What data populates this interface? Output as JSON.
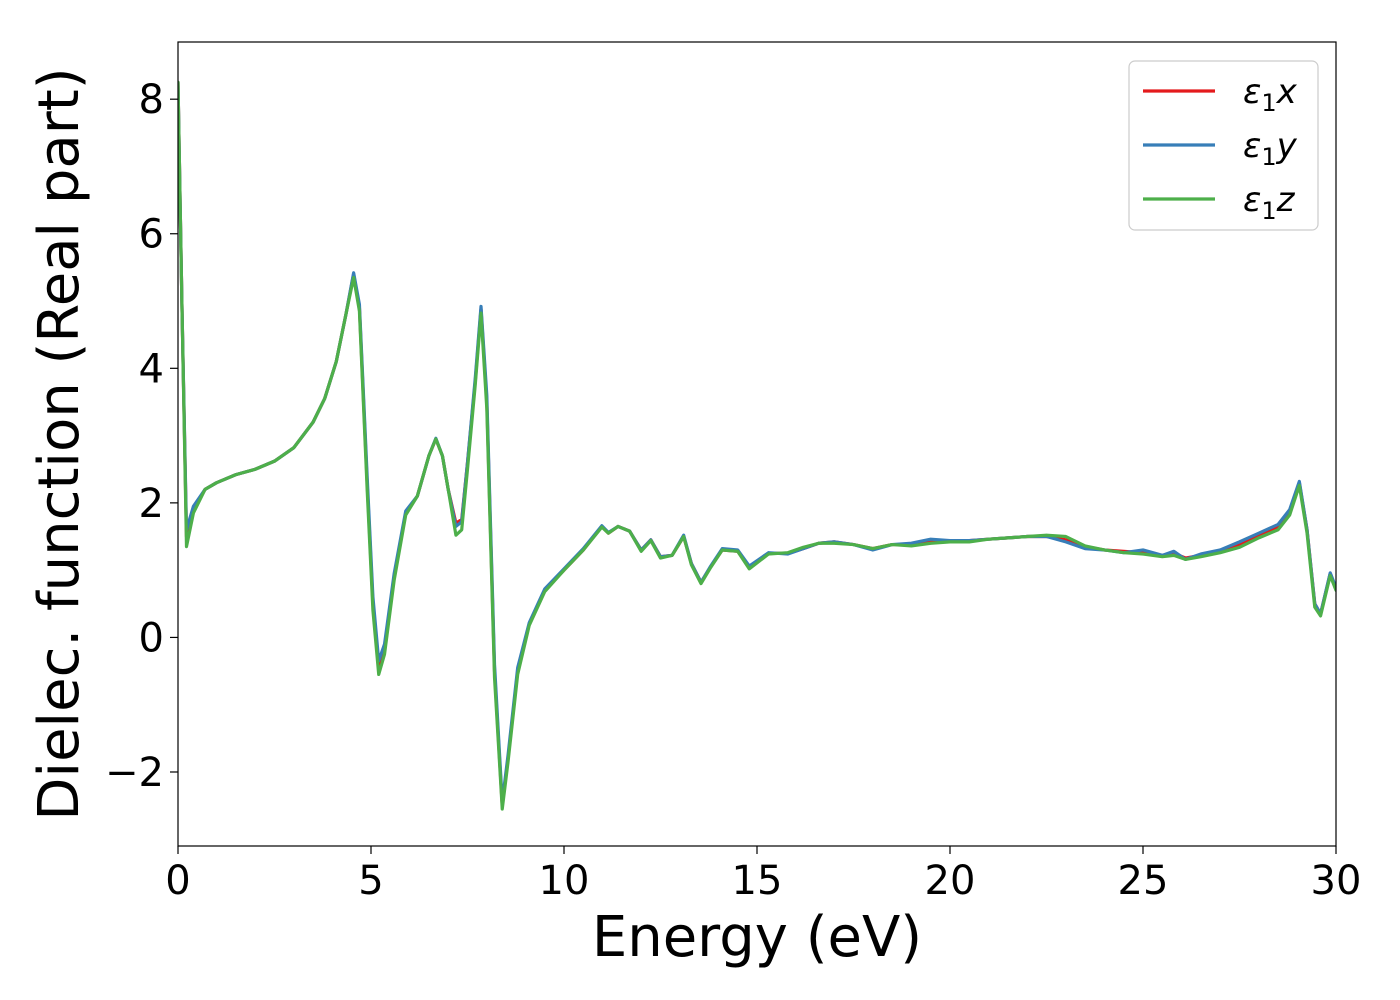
{
  "chart_data": {
    "type": "line",
    "title": "",
    "xlabel": "Energy (eV)",
    "ylabel": "Dielec. function (Real part)",
    "xlim": [
      0,
      30
    ],
    "ylim": [
      -3.1,
      8.85
    ],
    "xticks": [
      0,
      5,
      10,
      15,
      20,
      25,
      30
    ],
    "yticks": [
      -2,
      0,
      2,
      4,
      6,
      8
    ],
    "ytick_labels": [
      "−2",
      "0",
      "2",
      "4",
      "6",
      "8"
    ],
    "grid": false,
    "legend_position": "top-right",
    "series": [
      {
        "name": "ε1x",
        "symbol": "ε",
        "sub": "1",
        "axis": "x",
        "color": "#e41a1c",
        "points": [
          [
            0,
            8.25
          ],
          [
            0.1,
            5.0
          ],
          [
            0.22,
            1.5
          ],
          [
            0.4,
            1.9
          ],
          [
            0.7,
            2.2
          ],
          [
            1,
            2.3
          ],
          [
            1.5,
            2.42
          ],
          [
            2,
            2.5
          ],
          [
            2.5,
            2.62
          ],
          [
            3,
            2.82
          ],
          [
            3.5,
            3.2
          ],
          [
            3.8,
            3.55
          ],
          [
            4.1,
            4.1
          ],
          [
            4.35,
            4.8
          ],
          [
            4.55,
            5.4
          ],
          [
            4.7,
            4.9
          ],
          [
            4.9,
            2.3
          ],
          [
            5.05,
            0.5
          ],
          [
            5.2,
            -0.45
          ],
          [
            5.35,
            -0.2
          ],
          [
            5.6,
            0.9
          ],
          [
            5.9,
            1.85
          ],
          [
            6.2,
            2.1
          ],
          [
            6.5,
            2.7
          ],
          [
            6.68,
            2.95
          ],
          [
            6.85,
            2.7
          ],
          [
            7.0,
            2.2
          ],
          [
            7.2,
            1.7
          ],
          [
            7.35,
            1.75
          ],
          [
            7.5,
            2.6
          ],
          [
            7.7,
            3.8
          ],
          [
            7.85,
            4.88
          ],
          [
            8.0,
            3.5
          ],
          [
            8.2,
            -0.5
          ],
          [
            8.4,
            -2.5
          ],
          [
            8.55,
            -1.8
          ],
          [
            8.8,
            -0.5
          ],
          [
            9.1,
            0.2
          ],
          [
            9.5,
            0.7
          ],
          [
            10,
            1.0
          ],
          [
            10.5,
            1.3
          ],
          [
            10.98,
            1.65
          ],
          [
            11.15,
            1.55
          ],
          [
            11.4,
            1.65
          ],
          [
            11.7,
            1.58
          ],
          [
            12.0,
            1.3
          ],
          [
            12.25,
            1.45
          ],
          [
            12.5,
            1.2
          ],
          [
            12.8,
            1.22
          ],
          [
            13.1,
            1.5
          ],
          [
            13.3,
            1.1
          ],
          [
            13.55,
            0.82
          ],
          [
            13.8,
            1.05
          ],
          [
            14.1,
            1.3
          ],
          [
            14.5,
            1.28
          ],
          [
            14.8,
            1.05
          ],
          [
            15.3,
            1.25
          ],
          [
            15.8,
            1.25
          ],
          [
            16.2,
            1.32
          ],
          [
            16.6,
            1.4
          ],
          [
            17.0,
            1.42
          ],
          [
            17.5,
            1.38
          ],
          [
            18.0,
            1.32
          ],
          [
            18.5,
            1.38
          ],
          [
            19.0,
            1.38
          ],
          [
            19.5,
            1.42
          ],
          [
            20,
            1.42
          ],
          [
            20.5,
            1.44
          ],
          [
            21,
            1.46
          ],
          [
            21.5,
            1.48
          ],
          [
            22,
            1.5
          ],
          [
            22.5,
            1.5
          ],
          [
            23,
            1.45
          ],
          [
            23.5,
            1.35
          ],
          [
            24,
            1.3
          ],
          [
            24.5,
            1.28
          ],
          [
            25,
            1.26
          ],
          [
            25.5,
            1.22
          ],
          [
            25.8,
            1.25
          ],
          [
            26.1,
            1.18
          ],
          [
            26.5,
            1.22
          ],
          [
            27,
            1.28
          ],
          [
            27.5,
            1.38
          ],
          [
            28,
            1.52
          ],
          [
            28.5,
            1.65
          ],
          [
            28.8,
            1.85
          ],
          [
            29.05,
            2.3
          ],
          [
            29.25,
            1.6
          ],
          [
            29.45,
            0.5
          ],
          [
            29.6,
            0.35
          ],
          [
            29.85,
            0.95
          ],
          [
            30,
            0.72
          ]
        ]
      },
      {
        "name": "ε1y",
        "symbol": "ε",
        "sub": "1",
        "axis": "y",
        "color": "#377eb8",
        "points": [
          [
            0,
            8.25
          ],
          [
            0.1,
            5.0
          ],
          [
            0.22,
            1.6
          ],
          [
            0.4,
            1.95
          ],
          [
            0.7,
            2.2
          ],
          [
            1,
            2.3
          ],
          [
            1.5,
            2.42
          ],
          [
            2,
            2.5
          ],
          [
            2.5,
            2.62
          ],
          [
            3,
            2.82
          ],
          [
            3.5,
            3.2
          ],
          [
            3.8,
            3.55
          ],
          [
            4.1,
            4.1
          ],
          [
            4.35,
            4.8
          ],
          [
            4.55,
            5.42
          ],
          [
            4.7,
            4.95
          ],
          [
            4.9,
            2.4
          ],
          [
            5.05,
            0.6
          ],
          [
            5.2,
            -0.35
          ],
          [
            5.35,
            -0.1
          ],
          [
            5.6,
            0.95
          ],
          [
            5.9,
            1.88
          ],
          [
            6.2,
            2.1
          ],
          [
            6.5,
            2.7
          ],
          [
            6.68,
            2.96
          ],
          [
            6.85,
            2.7
          ],
          [
            7.0,
            2.2
          ],
          [
            7.2,
            1.65
          ],
          [
            7.35,
            1.72
          ],
          [
            7.5,
            2.6
          ],
          [
            7.7,
            3.85
          ],
          [
            7.85,
            4.92
          ],
          [
            8.0,
            3.6
          ],
          [
            8.2,
            -0.4
          ],
          [
            8.4,
            -2.45
          ],
          [
            8.55,
            -1.75
          ],
          [
            8.8,
            -0.45
          ],
          [
            9.1,
            0.22
          ],
          [
            9.5,
            0.72
          ],
          [
            10,
            1.02
          ],
          [
            10.5,
            1.32
          ],
          [
            10.98,
            1.66
          ],
          [
            11.15,
            1.56
          ],
          [
            11.4,
            1.65
          ],
          [
            11.7,
            1.58
          ],
          [
            12.0,
            1.3
          ],
          [
            12.25,
            1.45
          ],
          [
            12.5,
            1.2
          ],
          [
            12.8,
            1.22
          ],
          [
            13.1,
            1.52
          ],
          [
            13.3,
            1.1
          ],
          [
            13.55,
            0.82
          ],
          [
            13.8,
            1.06
          ],
          [
            14.1,
            1.32
          ],
          [
            14.5,
            1.3
          ],
          [
            14.8,
            1.06
          ],
          [
            15.3,
            1.26
          ],
          [
            15.8,
            1.24
          ],
          [
            16.2,
            1.32
          ],
          [
            16.6,
            1.4
          ],
          [
            17.0,
            1.42
          ],
          [
            17.5,
            1.38
          ],
          [
            18.0,
            1.3
          ],
          [
            18.5,
            1.38
          ],
          [
            19.0,
            1.4
          ],
          [
            19.5,
            1.46
          ],
          [
            20,
            1.44
          ],
          [
            20.5,
            1.44
          ],
          [
            21,
            1.46
          ],
          [
            21.5,
            1.48
          ],
          [
            22,
            1.5
          ],
          [
            22.5,
            1.5
          ],
          [
            23,
            1.42
          ],
          [
            23.5,
            1.32
          ],
          [
            24,
            1.3
          ],
          [
            24.5,
            1.26
          ],
          [
            25,
            1.3
          ],
          [
            25.5,
            1.22
          ],
          [
            25.8,
            1.28
          ],
          [
            26.1,
            1.16
          ],
          [
            26.5,
            1.24
          ],
          [
            27,
            1.3
          ],
          [
            27.5,
            1.42
          ],
          [
            28,
            1.55
          ],
          [
            28.5,
            1.68
          ],
          [
            28.8,
            1.9
          ],
          [
            29.05,
            2.32
          ],
          [
            29.25,
            1.6
          ],
          [
            29.45,
            0.5
          ],
          [
            29.6,
            0.35
          ],
          [
            29.85,
            0.96
          ],
          [
            30,
            0.74
          ]
        ]
      },
      {
        "name": "ε1z",
        "symbol": "ε",
        "sub": "1",
        "axis": "z",
        "color": "#4daf4a",
        "points": [
          [
            0,
            8.25
          ],
          [
            0.1,
            5.0
          ],
          [
            0.22,
            1.35
          ],
          [
            0.4,
            1.85
          ],
          [
            0.7,
            2.2
          ],
          [
            1,
            2.3
          ],
          [
            1.5,
            2.42
          ],
          [
            2,
            2.5
          ],
          [
            2.5,
            2.62
          ],
          [
            3,
            2.82
          ],
          [
            3.5,
            3.2
          ],
          [
            3.8,
            3.55
          ],
          [
            4.1,
            4.1
          ],
          [
            4.35,
            4.8
          ],
          [
            4.55,
            5.35
          ],
          [
            4.7,
            4.85
          ],
          [
            4.9,
            2.2
          ],
          [
            5.05,
            0.4
          ],
          [
            5.2,
            -0.55
          ],
          [
            5.35,
            -0.25
          ],
          [
            5.6,
            0.85
          ],
          [
            5.9,
            1.82
          ],
          [
            6.2,
            2.1
          ],
          [
            6.5,
            2.7
          ],
          [
            6.68,
            2.95
          ],
          [
            6.85,
            2.7
          ],
          [
            7.0,
            2.2
          ],
          [
            7.2,
            1.52
          ],
          [
            7.35,
            1.6
          ],
          [
            7.5,
            2.5
          ],
          [
            7.7,
            3.75
          ],
          [
            7.85,
            4.82
          ],
          [
            8.0,
            3.4
          ],
          [
            8.2,
            -0.6
          ],
          [
            8.4,
            -2.55
          ],
          [
            8.55,
            -1.85
          ],
          [
            8.8,
            -0.55
          ],
          [
            9.1,
            0.18
          ],
          [
            9.5,
            0.68
          ],
          [
            10,
            1.0
          ],
          [
            10.5,
            1.3
          ],
          [
            10.98,
            1.64
          ],
          [
            11.15,
            1.55
          ],
          [
            11.4,
            1.65
          ],
          [
            11.7,
            1.58
          ],
          [
            12.0,
            1.28
          ],
          [
            12.25,
            1.44
          ],
          [
            12.5,
            1.18
          ],
          [
            12.8,
            1.22
          ],
          [
            13.1,
            1.5
          ],
          [
            13.3,
            1.08
          ],
          [
            13.55,
            0.8
          ],
          [
            13.8,
            1.04
          ],
          [
            14.1,
            1.3
          ],
          [
            14.5,
            1.28
          ],
          [
            14.8,
            1.02
          ],
          [
            15.3,
            1.24
          ],
          [
            15.8,
            1.26
          ],
          [
            16.2,
            1.34
          ],
          [
            16.6,
            1.4
          ],
          [
            17.0,
            1.4
          ],
          [
            17.5,
            1.38
          ],
          [
            18.0,
            1.32
          ],
          [
            18.5,
            1.38
          ],
          [
            19.0,
            1.36
          ],
          [
            19.5,
            1.4
          ],
          [
            20,
            1.42
          ],
          [
            20.5,
            1.42
          ],
          [
            21,
            1.46
          ],
          [
            21.5,
            1.48
          ],
          [
            22,
            1.5
          ],
          [
            22.5,
            1.52
          ],
          [
            23,
            1.5
          ],
          [
            23.5,
            1.36
          ],
          [
            24,
            1.3
          ],
          [
            24.5,
            1.26
          ],
          [
            25,
            1.24
          ],
          [
            25.5,
            1.2
          ],
          [
            25.8,
            1.22
          ],
          [
            26.1,
            1.16
          ],
          [
            26.5,
            1.2
          ],
          [
            27,
            1.26
          ],
          [
            27.5,
            1.34
          ],
          [
            28,
            1.48
          ],
          [
            28.5,
            1.6
          ],
          [
            28.8,
            1.82
          ],
          [
            29.05,
            2.26
          ],
          [
            29.25,
            1.55
          ],
          [
            29.45,
            0.45
          ],
          [
            29.6,
            0.32
          ],
          [
            29.85,
            0.92
          ],
          [
            30,
            0.7
          ]
        ]
      }
    ]
  }
}
